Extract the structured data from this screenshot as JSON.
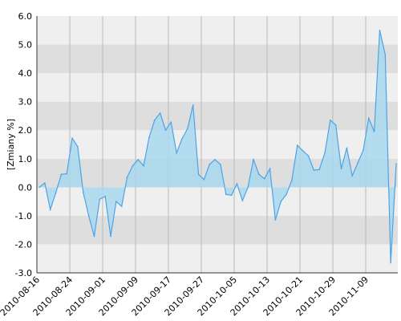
{
  "chart_data": {
    "type": "area",
    "ylabel": "[Zmiany %]",
    "ylim": [
      -3.0,
      6.0
    ],
    "y_ticks": [
      "-3.0",
      "-2.0",
      "-1.0",
      "0.0",
      "1.0",
      "2.0",
      "3.0",
      "4.0",
      "5.0",
      "6.0"
    ],
    "x_ticks": [
      "2010-08-16",
      "2010-08-24",
      "2010-09-01",
      "2010-09-09",
      "2010-09-17",
      "2010-09-27",
      "2010-10-05",
      "2010-10-13",
      "2010-10-21",
      "2010-10-29",
      "2010-11-09"
    ],
    "grid": true,
    "series": [
      {
        "values": [
          0.0,
          0.15,
          -0.78,
          -0.2,
          0.45,
          0.47,
          1.72,
          1.42,
          -0.18,
          -1.0,
          -1.72,
          -0.42,
          -0.32,
          -1.72,
          -0.5,
          -0.67,
          0.35,
          0.75,
          0.97,
          0.75,
          1.75,
          2.35,
          2.6,
          2.0,
          2.28,
          1.2,
          1.7,
          2.05,
          2.88,
          0.45,
          0.27,
          0.8,
          0.97,
          0.8,
          -0.25,
          -0.28,
          0.12,
          -0.47,
          0.0,
          0.97,
          0.45,
          0.3,
          0.65,
          -1.15,
          -0.5,
          -0.25,
          0.25,
          1.47,
          1.28,
          1.1,
          0.6,
          0.62,
          1.2,
          2.35,
          2.18,
          0.65,
          1.38,
          0.4,
          0.85,
          1.3,
          2.42,
          1.95,
          5.5,
          4.65,
          -2.65,
          0.82
        ]
      }
    ],
    "colors": {
      "line": "#4da3e6",
      "fill": "#a8d8ee",
      "band_dark": "#dedede",
      "band_light": "#efefef",
      "gridline": "#b8b8b8"
    }
  }
}
